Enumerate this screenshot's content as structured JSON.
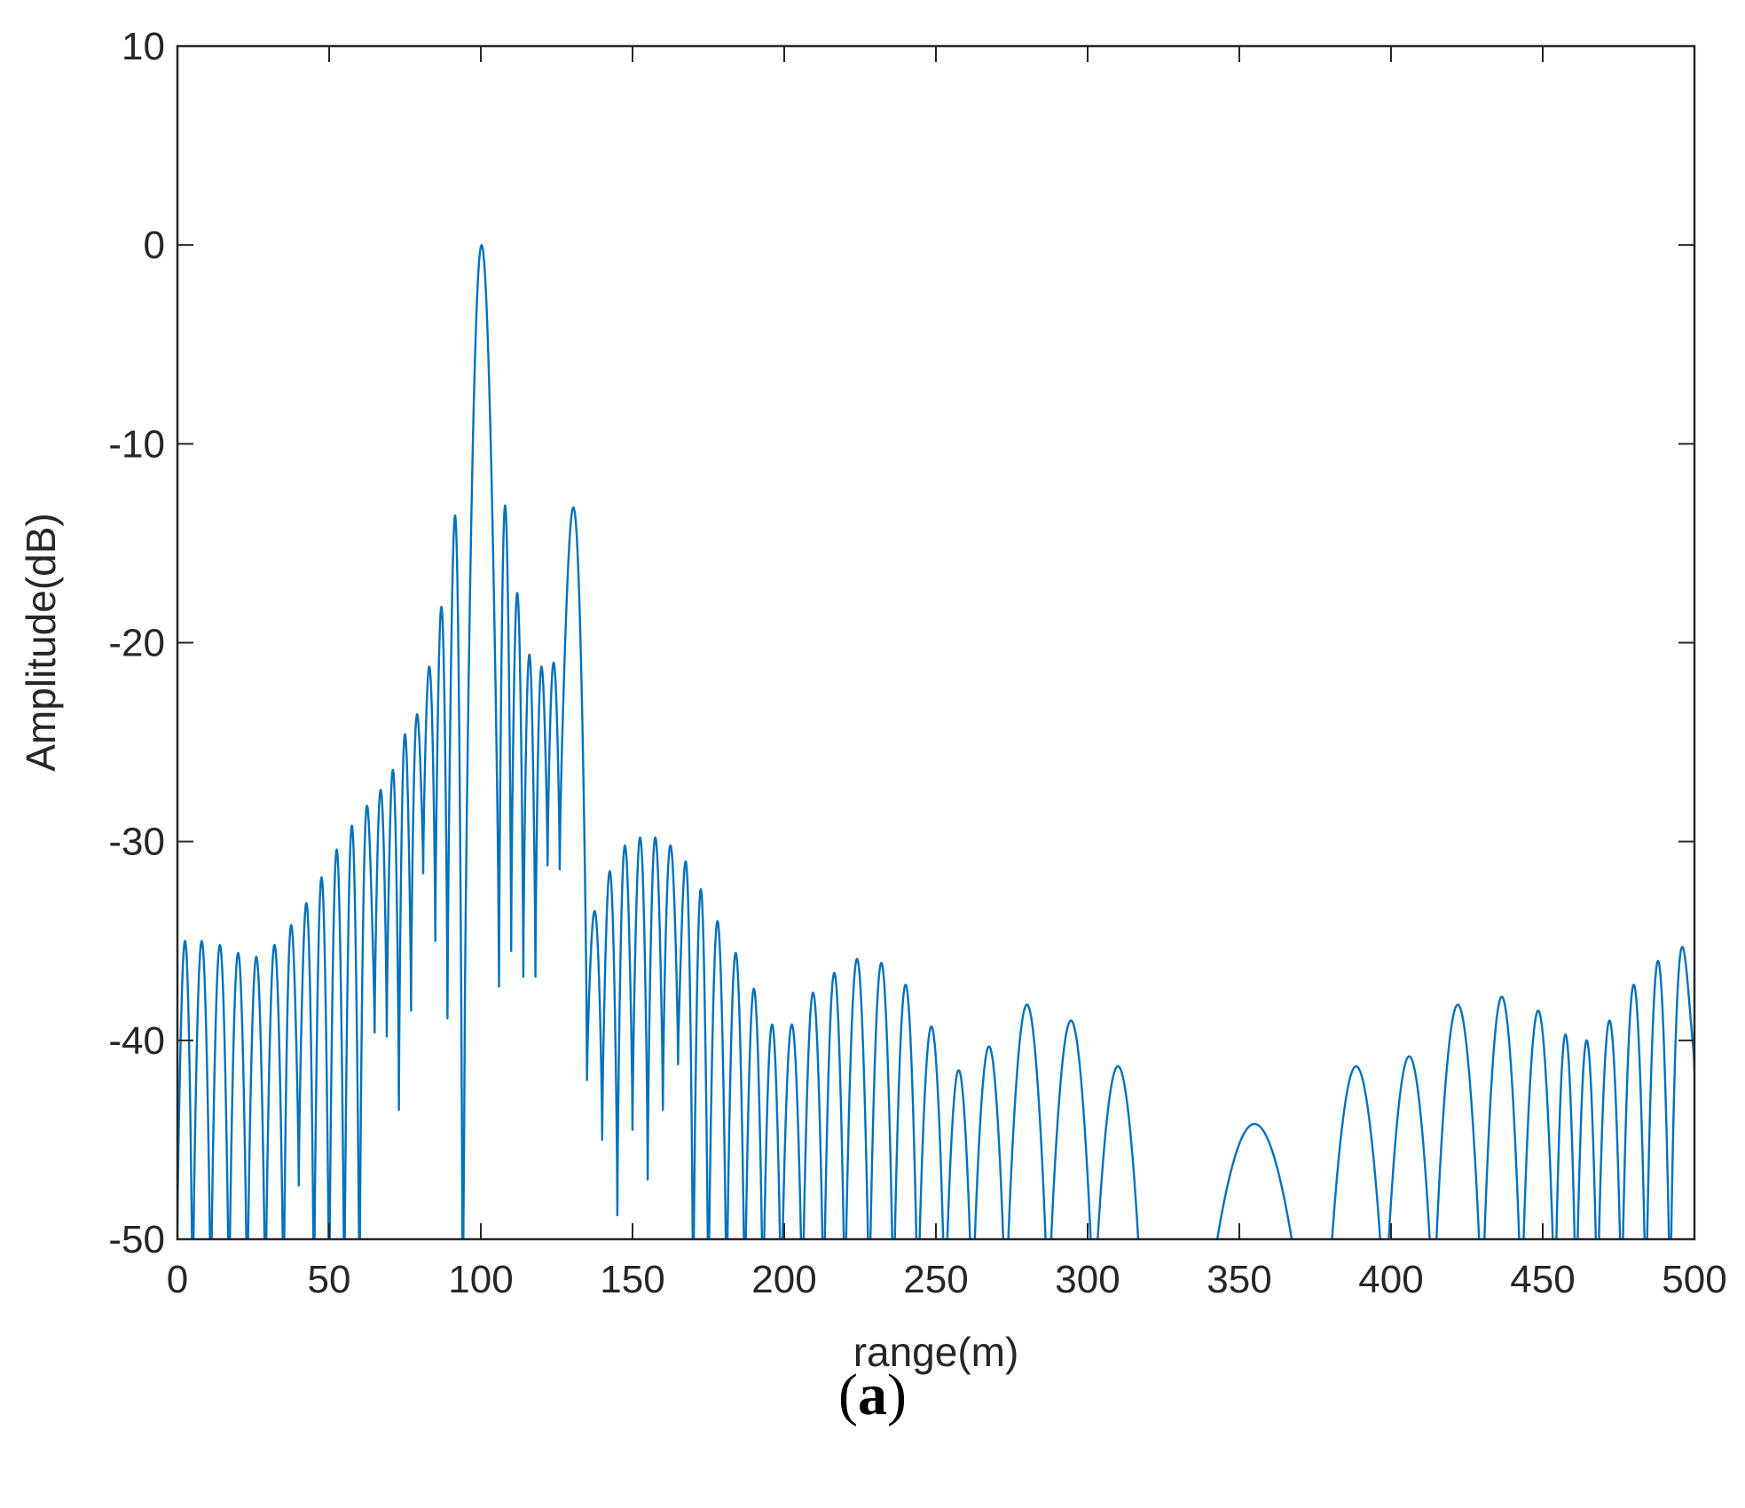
{
  "chart_data": {
    "type": "line",
    "xlabel": "range(m)",
    "ylabel": "Amplitude(dB)",
    "xlim": [
      0,
      500
    ],
    "ylim": [
      -50,
      10
    ],
    "x_ticks": [
      "0",
      "50",
      "100",
      "150",
      "200",
      "250",
      "300",
      "350",
      "400",
      "450",
      "500"
    ],
    "y_ticks": [
      "10",
      "0",
      "-10",
      "-20",
      "-30",
      "-40",
      "-50"
    ],
    "grid": false,
    "line_color": "#0072BD",
    "series": [
      {
        "lobes": [
          [
            0,
            5,
            -35
          ],
          [
            5,
            11,
            -35
          ],
          [
            11,
            17,
            -35.2
          ],
          [
            17,
            23,
            -35.6
          ],
          [
            23,
            29,
            -35.8
          ],
          [
            29,
            35,
            -35.2
          ],
          [
            35,
            40,
            -34.2
          ],
          [
            40,
            45,
            -33.1
          ],
          [
            45,
            50,
            -31.8
          ],
          [
            50,
            55,
            -30.4
          ],
          [
            55,
            60,
            -29.2
          ],
          [
            60,
            65,
            -28.2
          ],
          [
            65,
            69,
            -27.4
          ],
          [
            69,
            73,
            -26.4
          ],
          [
            73,
            77,
            -24.6
          ],
          [
            77,
            81,
            -23.6
          ],
          [
            81,
            85,
            -21.2
          ],
          [
            85,
            89,
            -18.2
          ],
          [
            89,
            94,
            -13.6
          ],
          [
            94.5,
            106,
            0
          ],
          [
            106,
            110,
            -13.1
          ],
          [
            110,
            114,
            -17.5
          ],
          [
            114,
            118,
            -20.6
          ],
          [
            118,
            122,
            -21.2
          ],
          [
            122,
            126,
            -21
          ],
          [
            126,
            135,
            -13.2
          ],
          [
            135,
            140,
            -33.5
          ],
          [
            140,
            145,
            -31.5
          ],
          [
            145,
            150,
            -30.2
          ],
          [
            150,
            155,
            -29.8
          ],
          [
            155,
            160,
            -29.8
          ],
          [
            160,
            165,
            -30.2
          ],
          [
            165,
            170,
            -31
          ],
          [
            170,
            175,
            -32.4
          ],
          [
            175,
            181,
            -34
          ],
          [
            181,
            187,
            -35.6
          ],
          [
            187,
            193,
            -37.4
          ],
          [
            193,
            199,
            -39.2
          ],
          [
            199,
            206,
            -39.2
          ],
          [
            206,
            213,
            -37.6
          ],
          [
            213,
            220,
            -36.6
          ],
          [
            220,
            228,
            -35.9
          ],
          [
            228,
            236,
            -36.1
          ],
          [
            236,
            244,
            -37.2
          ],
          [
            244,
            253,
            -39.3
          ],
          [
            253,
            262,
            -41.5
          ],
          [
            262,
            273,
            -40.3
          ],
          [
            273,
            287,
            -38.2
          ],
          [
            287,
            302,
            -39
          ],
          [
            302,
            318,
            -41.3
          ],
          [
            339,
            371,
            -44.2
          ],
          [
            379,
            398,
            -41.3
          ],
          [
            398,
            414,
            -40.8
          ],
          [
            414,
            430,
            -38.2
          ],
          [
            430,
            443,
            -37.8
          ],
          [
            443,
            454,
            -38.5
          ],
          [
            454,
            461,
            -39.7
          ],
          [
            461,
            468,
            -40
          ],
          [
            468,
            476,
            -39
          ],
          [
            476,
            484,
            -37.2
          ],
          [
            484,
            492,
            -36
          ],
          [
            492,
            500,
            -35.3
          ]
        ],
        "dips": [
          [
            5,
            -55
          ],
          [
            11,
            -55
          ],
          [
            17,
            -55
          ],
          [
            23,
            -55
          ],
          [
            29,
            -55
          ],
          [
            35,
            -55
          ],
          [
            40,
            -47.3
          ],
          [
            45,
            -55
          ],
          [
            50,
            -55
          ],
          [
            55,
            -55
          ],
          [
            60,
            -55
          ],
          [
            65,
            -39.6
          ],
          [
            69,
            -39.8
          ],
          [
            73,
            -43.5
          ],
          [
            77,
            -38.5
          ],
          [
            81,
            -31.6
          ],
          [
            85,
            -35
          ],
          [
            89,
            -38.9
          ],
          [
            94.5,
            -44.5
          ],
          [
            106,
            -37.3
          ],
          [
            110,
            -35.5
          ],
          [
            114,
            -36.8
          ],
          [
            118,
            -36.8
          ],
          [
            122,
            -31.2
          ],
          [
            126,
            -31.4
          ],
          [
            135,
            -42
          ],
          [
            140,
            -45
          ],
          [
            145,
            -48.8
          ],
          [
            150,
            -44.5
          ],
          [
            155,
            -47
          ],
          [
            160,
            -43.5
          ],
          [
            165,
            -41.2
          ],
          [
            170,
            -55
          ],
          [
            175,
            -55
          ],
          [
            181,
            -55
          ],
          [
            187,
            -55
          ],
          [
            193,
            -55
          ],
          [
            199,
            -55
          ],
          [
            206,
            -55
          ],
          [
            213,
            -55
          ],
          [
            220,
            -55
          ],
          [
            228,
            -55
          ],
          [
            236,
            -55
          ],
          [
            244,
            -55
          ],
          [
            253,
            -55
          ],
          [
            262,
            -55
          ],
          [
            273,
            -55
          ],
          [
            287,
            -55
          ],
          [
            302,
            -55
          ],
          [
            398,
            -55
          ],
          [
            414,
            -55
          ],
          [
            430,
            -55
          ],
          [
            443,
            -55
          ],
          [
            454,
            -55
          ],
          [
            461,
            -55
          ],
          [
            468,
            -55
          ],
          [
            476,
            -55
          ],
          [
            484,
            -55
          ],
          [
            492,
            -55
          ]
        ],
        "start_value": -50,
        "end_value": -41.5
      }
    ]
  },
  "caption": {
    "open": "(",
    "letter": "a",
    "close": ")"
  }
}
